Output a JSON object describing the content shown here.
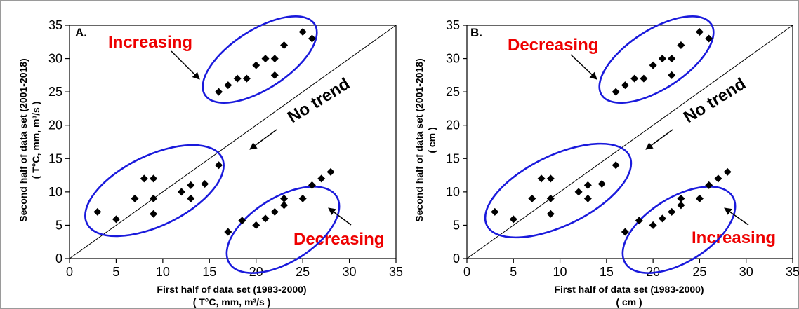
{
  "chart_data": [
    {
      "type": "scatter",
      "panel_label": "A.",
      "xlabel": "First half of data set (1983-2000)",
      "xlabel_units": "( T°C, mm, m³/s )",
      "ylabel": "Second half of data set (2001-2018)",
      "ylabel_units": "( T°C, mm, m³/s )",
      "xlim": [
        0,
        35
      ],
      "ylim": [
        0,
        35
      ],
      "xticks": [
        "0",
        "5",
        "10",
        "15",
        "20",
        "25",
        "30",
        "35"
      ],
      "yticks": [
        "0",
        "5",
        "10",
        "15",
        "20",
        "25",
        "30",
        "35"
      ],
      "grid": false,
      "reference_line": "1:1",
      "points": [
        {
          "x": 3,
          "y": 7
        },
        {
          "x": 5,
          "y": 5.9
        },
        {
          "x": 7,
          "y": 9
        },
        {
          "x": 8,
          "y": 12
        },
        {
          "x": 9,
          "y": 12
        },
        {
          "x": 9,
          "y": 9
        },
        {
          "x": 9,
          "y": 6.7
        },
        {
          "x": 12,
          "y": 10
        },
        {
          "x": 13,
          "y": 11
        },
        {
          "x": 13,
          "y": 9
        },
        {
          "x": 14.5,
          "y": 11.2
        },
        {
          "x": 16,
          "y": 14
        },
        {
          "x": 17,
          "y": 4
        },
        {
          "x": 18.5,
          "y": 5.7
        },
        {
          "x": 20,
          "y": 5
        },
        {
          "x": 21,
          "y": 6
        },
        {
          "x": 22,
          "y": 7
        },
        {
          "x": 23,
          "y": 8
        },
        {
          "x": 23,
          "y": 9
        },
        {
          "x": 25,
          "y": 9
        },
        {
          "x": 26,
          "y": 11
        },
        {
          "x": 27,
          "y": 12
        },
        {
          "x": 28,
          "y": 13
        },
        {
          "x": 16,
          "y": 25
        },
        {
          "x": 17,
          "y": 26
        },
        {
          "x": 18,
          "y": 27
        },
        {
          "x": 19,
          "y": 27
        },
        {
          "x": 20,
          "y": 29
        },
        {
          "x": 21,
          "y": 30
        },
        {
          "x": 22,
          "y": 27.5
        },
        {
          "x": 22,
          "y": 30
        },
        {
          "x": 23,
          "y": 32
        },
        {
          "x": 25,
          "y": 34
        },
        {
          "x": 26,
          "y": 33
        }
      ],
      "annotations": {
        "upper": "Increasing",
        "middle": "No trend",
        "lower": "Decreasing"
      },
      "colors": {
        "ellipse": "#1a1adc",
        "emphasis_text": "#ee0000",
        "markers": "#000000"
      }
    },
    {
      "type": "scatter",
      "panel_label": "B.",
      "xlabel": "First half of data set (1983-2000)",
      "xlabel_units": "( cm )",
      "ylabel": "Second half of data set (2001-2018)",
      "ylabel_units": "( cm )",
      "xlim": [
        0,
        35
      ],
      "ylim": [
        0,
        35
      ],
      "xticks": [
        "0",
        "5",
        "10",
        "15",
        "20",
        "25",
        "30",
        "35"
      ],
      "yticks": [
        "0",
        "5",
        "10",
        "15",
        "20",
        "25",
        "30",
        "35"
      ],
      "grid": false,
      "reference_line": "1:1",
      "points": [
        {
          "x": 3,
          "y": 7
        },
        {
          "x": 5,
          "y": 5.9
        },
        {
          "x": 7,
          "y": 9
        },
        {
          "x": 8,
          "y": 12
        },
        {
          "x": 9,
          "y": 12
        },
        {
          "x": 9,
          "y": 9
        },
        {
          "x": 9,
          "y": 6.7
        },
        {
          "x": 12,
          "y": 10
        },
        {
          "x": 13,
          "y": 11
        },
        {
          "x": 13,
          "y": 9
        },
        {
          "x": 14.5,
          "y": 11.2
        },
        {
          "x": 16,
          "y": 14
        },
        {
          "x": 17,
          "y": 4
        },
        {
          "x": 18.5,
          "y": 5.7
        },
        {
          "x": 20,
          "y": 5
        },
        {
          "x": 21,
          "y": 6
        },
        {
          "x": 22,
          "y": 7
        },
        {
          "x": 23,
          "y": 8
        },
        {
          "x": 23,
          "y": 9
        },
        {
          "x": 25,
          "y": 9
        },
        {
          "x": 26,
          "y": 11
        },
        {
          "x": 27,
          "y": 12
        },
        {
          "x": 28,
          "y": 13
        },
        {
          "x": 16,
          "y": 25
        },
        {
          "x": 17,
          "y": 26
        },
        {
          "x": 18,
          "y": 27
        },
        {
          "x": 19,
          "y": 27
        },
        {
          "x": 20,
          "y": 29
        },
        {
          "x": 21,
          "y": 30
        },
        {
          "x": 22,
          "y": 27.5
        },
        {
          "x": 22,
          "y": 30
        },
        {
          "x": 23,
          "y": 32
        },
        {
          "x": 25,
          "y": 34
        },
        {
          "x": 26,
          "y": 33
        }
      ],
      "annotations": {
        "upper": "Decreasing",
        "middle": "No trend",
        "lower": "Increasing"
      },
      "colors": {
        "ellipse": "#1a1adc",
        "emphasis_text": "#ee0000",
        "markers": "#000000"
      }
    }
  ]
}
